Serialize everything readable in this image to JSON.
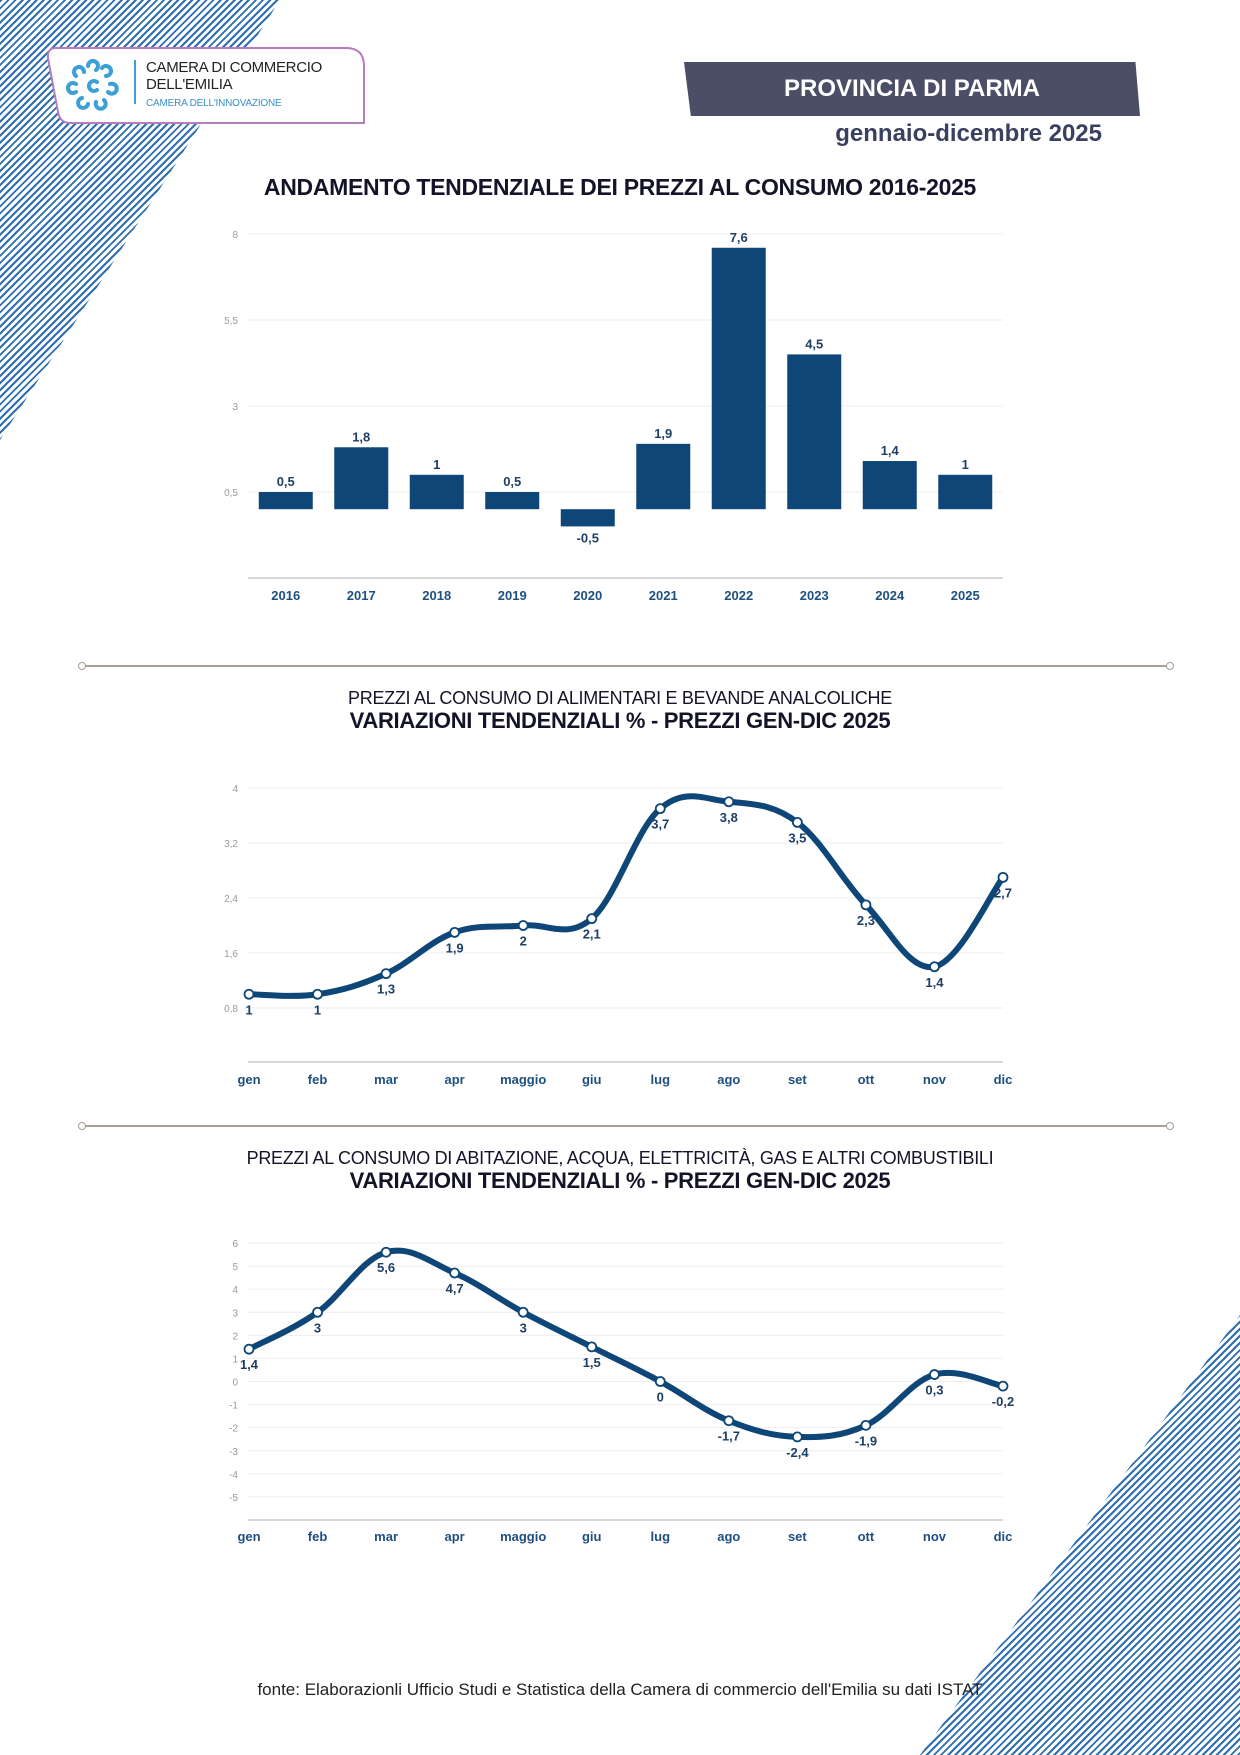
{
  "header": {
    "org_name_line1": "CAMERA DI COMMERCIO",
    "org_name_line2": "DELL'EMILIA",
    "org_tagline": "CAMERA DELL'INNOVAZIONE",
    "logo_icon": "chamber-of-commerce-logo-icon",
    "province": "PROVINCIA DI PARMA",
    "period": "gennaio-dicembre 2025"
  },
  "colors": {
    "series": "#0d4677",
    "hatch": "#2e6fb0",
    "banner": "#4a4e66",
    "grid": "#eeeeee"
  },
  "chart_data": [
    {
      "type": "bar",
      "title": "ANDAMENTO TENDENZIALE DEI PREZZI AL CONSUMO 2016-2025",
      "subtitle": "",
      "xlabel": "",
      "ylabel": "",
      "categories": [
        "2016",
        "2017",
        "2018",
        "2019",
        "2020",
        "2021",
        "2022",
        "2023",
        "2024",
        "2025"
      ],
      "values": [
        0.5,
        1.8,
        1,
        0.5,
        -0.5,
        1.9,
        7.6,
        4.5,
        1.4,
        1
      ],
      "value_labels": [
        "0,5",
        "1,8",
        "1",
        "0,5",
        "-0,5",
        "1,9",
        "7,6",
        "4,5",
        "1,4",
        "1"
      ],
      "yticks": [
        0.5,
        3,
        5.5,
        8
      ],
      "ytick_labels": [
        "0,5",
        "3",
        "5,5",
        "8"
      ],
      "ylim": [
        -2,
        8
      ],
      "grid": true,
      "legend": "none"
    },
    {
      "type": "line",
      "title": "VARIAZIONI TENDENZIALI % - PREZZI GEN-DIC 2025",
      "subtitle": "PREZZI AL CONSUMO DI ALIMENTARI E BEVANDE ANALCOLICHE",
      "xlabel": "",
      "ylabel": "",
      "categories": [
        "gen",
        "feb",
        "mar",
        "apr",
        "maggio",
        "giu",
        "lug",
        "ago",
        "set",
        "ott",
        "nov",
        "dic"
      ],
      "series": [
        {
          "name": "Alimentari e bevande analcoliche",
          "values": [
            1,
            1,
            1.3,
            1.9,
            2,
            2.1,
            3.7,
            3.8,
            3.5,
            2.3,
            1.4,
            2.7
          ],
          "value_labels": [
            "1",
            "1",
            "1,3",
            "1,9",
            "2",
            "2,1",
            "3,7",
            "3,8",
            "3,5",
            "2,3",
            "1,4",
            "2,7"
          ]
        }
      ],
      "yticks": [
        0.8,
        1.6,
        2.4,
        3.2,
        4
      ],
      "ytick_labels": [
        "0,8",
        "1,6",
        "2,4",
        "3,2",
        "4"
      ],
      "ylim": [
        0,
        4
      ],
      "grid": true,
      "legend": "none"
    },
    {
      "type": "line",
      "title": "VARIAZIONI TENDENZIALI % - PREZZI GEN-DIC 2025",
      "subtitle": "PREZZI AL CONSUMO DI ABITAZIONE, ACQUA, ELETTRICITÀ, GAS E ALTRI COMBUSTIBILI",
      "xlabel": "",
      "ylabel": "",
      "categories": [
        "gen",
        "feb",
        "mar",
        "apr",
        "maggio",
        "giu",
        "lug",
        "ago",
        "set",
        "ott",
        "nov",
        "dic"
      ],
      "series": [
        {
          "name": "Abitazione, acqua, elettricità, gas e altri combustibili",
          "values": [
            1.4,
            3,
            5.6,
            4.7,
            3,
            1.5,
            0,
            -1.7,
            -2.4,
            -1.9,
            0.3,
            -0.2
          ],
          "value_labels": [
            "1,4",
            "3",
            "5,6",
            "4,7",
            "3",
            "1,5",
            "0",
            "-1,7",
            "-2,4",
            "-1,9",
            "0,3",
            "-0,2"
          ]
        }
      ],
      "yticks": [
        -5,
        -4,
        -3,
        -2,
        -1,
        0,
        1,
        2,
        3,
        4,
        5,
        6
      ],
      "ytick_labels": [
        "-5",
        "-4",
        "-3",
        "-2",
        "-1",
        "0",
        "1",
        "2",
        "3",
        "4",
        "5",
        "6"
      ],
      "ylim": [
        -6,
        6
      ],
      "grid": true,
      "legend": "none"
    }
  ],
  "footer": {
    "source": "fonte: Elaborazionli Ufficio Studi e Statistica della Camera di commercio dell'Emilia su dati ISTAT"
  }
}
